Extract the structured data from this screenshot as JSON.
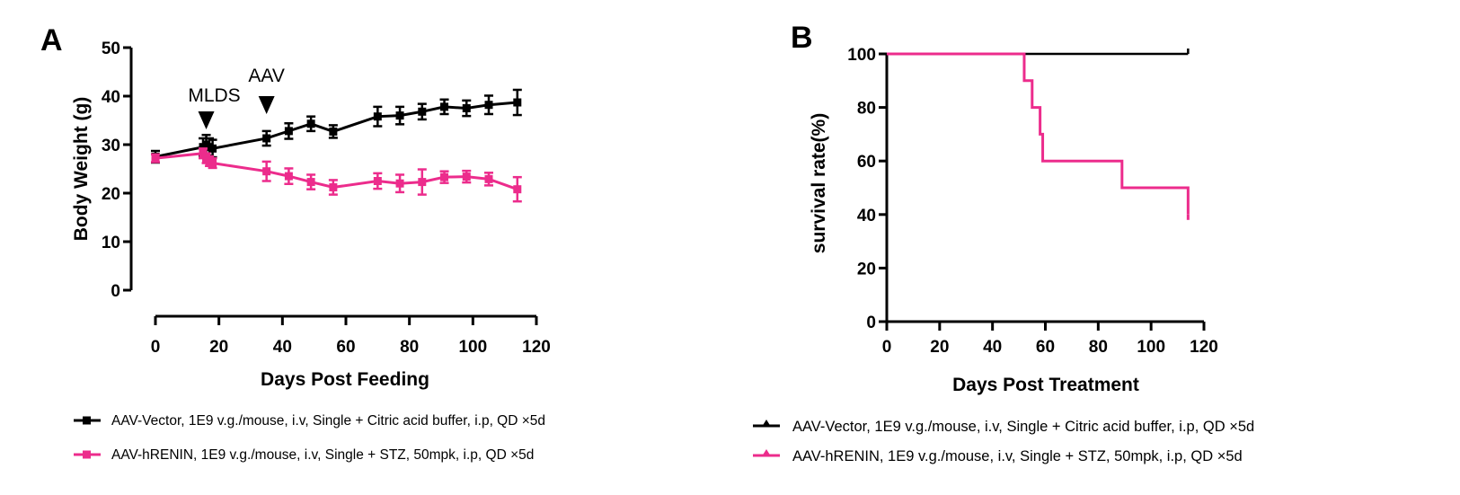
{
  "chart_data": [
    {
      "panel": "A",
      "type": "line",
      "xlabel": "Days Post Feeding",
      "ylabel": "Body Weight (g)",
      "xlim": [
        0,
        120
      ],
      "ylim": [
        0,
        50
      ],
      "xticks": [
        0,
        20,
        40,
        60,
        80,
        100,
        120
      ],
      "yticks": [
        0,
        10,
        20,
        30,
        40,
        50
      ],
      "grid": false,
      "legend_position": "bottom",
      "annotations": [
        {
          "label": "MLDS",
          "x": 16
        },
        {
          "label": "AAV",
          "x": 35
        }
      ],
      "series": [
        {
          "name": "AAV-Vector,  1E9 v.g./mouse,  i.v,  Single + Citric acid buffer,  i.p,  QD ×5d",
          "color": "#000000",
          "marker": "square",
          "x": [
            0,
            15,
            16,
            17,
            18,
            35,
            42,
            49,
            56,
            70,
            77,
            84,
            91,
            98,
            105,
            114
          ],
          "y": [
            27.5,
            29.5,
            30.0,
            29.5,
            29.2,
            31.3,
            32.8,
            34.3,
            32.7,
            35.8,
            36.0,
            36.8,
            37.8,
            37.5,
            38.2,
            38.7
          ],
          "err": [
            1.2,
            1.8,
            2.0,
            1.8,
            1.8,
            1.5,
            1.6,
            1.5,
            1.3,
            2.0,
            1.8,
            1.6,
            1.5,
            1.6,
            1.9,
            2.6
          ]
        },
        {
          "name": "AAV-hRENIN,  1E9 v.g./mouse,  i.v,  Single + STZ,  50mpk,  i.p,  QD ×5d",
          "color": "#EC2C8C",
          "marker": "square",
          "x": [
            0,
            15,
            16,
            17,
            18,
            35,
            42,
            49,
            56,
            70,
            77,
            84,
            91,
            98,
            105,
            114
          ],
          "y": [
            27.2,
            28.2,
            27.2,
            26.6,
            26.2,
            24.5,
            23.5,
            22.3,
            21.2,
            22.5,
            22.0,
            22.3,
            23.3,
            23.4,
            22.9,
            20.8
          ],
          "err": [
            0.8,
            1.0,
            1.0,
            1.0,
            1.0,
            2.0,
            1.6,
            1.5,
            1.5,
            1.6,
            1.8,
            2.6,
            1.2,
            1.2,
            1.3,
            2.5
          ]
        }
      ]
    },
    {
      "panel": "B",
      "type": "line",
      "xlabel": "Days Post Treatment",
      "ylabel": "survival rate(%)",
      "xlim": [
        0,
        120
      ],
      "ylim": [
        0,
        100
      ],
      "xticks": [
        0,
        20,
        40,
        60,
        80,
        100,
        120
      ],
      "yticks": [
        0,
        20,
        40,
        60,
        80,
        100
      ],
      "grid": false,
      "legend_position": "bottom",
      "series": [
        {
          "name": "AAV-Vector,  1E9 v.g./mouse,  i.v,  Single + Citric acid buffer,  i.p,  QD ×5d",
          "color": "#000000",
          "step": true,
          "x": [
            0,
            114
          ],
          "y": [
            100,
            100
          ]
        },
        {
          "name": "AAV-hRENIN,  1E9 v.g./mouse,  i.v,  Single + STZ,  50mpk,  i.p,  QD ×5d",
          "color": "#EC2C8C",
          "step": true,
          "x": [
            0,
            52,
            55,
            58,
            59,
            89,
            114
          ],
          "y": [
            100,
            90,
            80,
            70,
            60,
            50,
            40
          ]
        }
      ]
    }
  ]
}
